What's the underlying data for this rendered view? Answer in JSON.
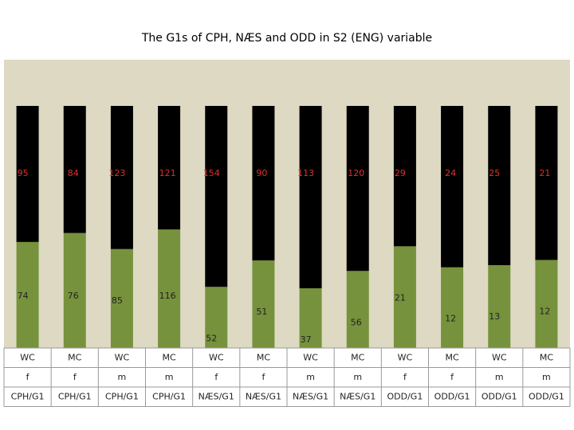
{
  "chart_data": {
    "type": "bar",
    "stacked": true,
    "percent": true,
    "title": "The G1s of CPH, NÆS and ODD in S2 (ENG) variable",
    "categories": [
      [
        "WC",
        "f",
        "CPH/G1"
      ],
      [
        "MC",
        "f",
        "CPH/G1"
      ],
      [
        "WC",
        "m",
        "CPH/G1"
      ],
      [
        "MC",
        "m",
        "CPH/G1"
      ],
      [
        "WC",
        "f",
        "NÆS/G1"
      ],
      [
        "MC",
        "f",
        "NÆS/G1"
      ],
      [
        "WC",
        "m",
        "NÆS/G1"
      ],
      [
        "MC",
        "m",
        "NÆS/G1"
      ],
      [
        "WC",
        "f",
        "ODD/G1"
      ],
      [
        "MC",
        "f",
        "ODD/G1"
      ],
      [
        "WC",
        "m",
        "ODD/G1"
      ],
      [
        "MC",
        "m",
        "ODD/G1"
      ]
    ],
    "series": [
      {
        "color": "#76923c",
        "label_color": "#222222",
        "values": [
          74,
          76,
          85,
          116,
          52,
          51,
          37,
          56,
          21,
          12,
          13,
          12
        ]
      },
      {
        "color": "#000000",
        "label_color": "#e0302c",
        "values": [
          95,
          84,
          123,
          121,
          154,
          90,
          113,
          120,
          29,
          24,
          25,
          21
        ]
      }
    ],
    "background": "#ddd9c3"
  }
}
